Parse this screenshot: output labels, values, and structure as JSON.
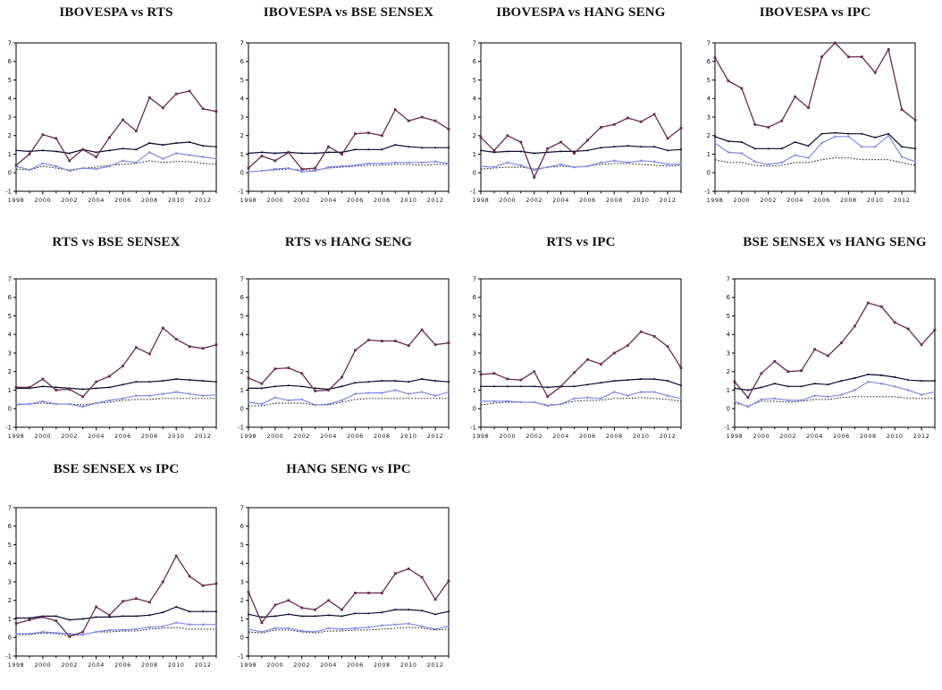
{
  "figure": {
    "description": "Grid of 10 line charts comparing pairs of stock market indices",
    "background": "#ffffff"
  },
  "chart_data": {
    "type": "line",
    "grid": {
      "rows": 3,
      "cols": 4
    },
    "x": [
      1998,
      1999,
      2000,
      2001,
      2002,
      2003,
      2004,
      2005,
      2006,
      2007,
      2008,
      2009,
      2010,
      2011,
      2012,
      2013
    ],
    "x_tick_labels": [
      "1998",
      "2000",
      "2002",
      "2004",
      "2006",
      "2008",
      "2010",
      "2012"
    ],
    "y_ticks": [
      -1,
      0,
      1,
      2,
      3,
      4,
      5,
      6,
      7
    ],
    "ylim": [
      -1,
      7
    ],
    "xlim": [
      1998,
      2013
    ],
    "legend": "none",
    "grid_lines": false,
    "series_meta": [
      {
        "key": "maroon",
        "label": "dark maroon line, square markers",
        "color": "#692B4F",
        "marker": 2.8,
        "dash": null
      },
      {
        "key": "black",
        "label": "dark navy-black line, small markers",
        "color": "#0A0A32",
        "marker": 1.8,
        "dash": null
      },
      {
        "key": "blue",
        "label": "light periwinkle line, square markers",
        "color": "#8487EC",
        "marker": 2.2,
        "dash": null
      },
      {
        "key": "dotted",
        "label": "black dotted line",
        "color": "#000000",
        "marker": 0,
        "dash": "1.6 1.8"
      }
    ],
    "charts": [
      {
        "title": "IBOVESPA vs RTS",
        "row": 0,
        "col": 0,
        "values": {
          "maroon": [
            0.4,
            1.0,
            2.05,
            1.85,
            0.65,
            1.25,
            0.85,
            1.9,
            2.85,
            2.25,
            4.05,
            3.5,
            4.25,
            4.4,
            3.45,
            3.3
          ],
          "black": [
            1.2,
            1.15,
            1.2,
            1.15,
            1.05,
            1.25,
            1.1,
            1.2,
            1.3,
            1.25,
            1.6,
            1.5,
            1.6,
            1.65,
            1.45,
            1.4
          ],
          "blue": [
            0.35,
            0.15,
            0.5,
            0.35,
            0.1,
            0.25,
            0.2,
            0.35,
            0.65,
            0.55,
            1.1,
            0.75,
            1.05,
            0.95,
            0.85,
            0.75
          ],
          "dotted": [
            0.2,
            0.15,
            0.35,
            0.25,
            0.15,
            0.25,
            0.3,
            0.4,
            0.45,
            0.5,
            0.65,
            0.55,
            0.6,
            0.6,
            0.5,
            0.45
          ]
        }
      },
      {
        "title": "IBOVESPA vs BSE SENSEX",
        "row": 0,
        "col": 1,
        "values": {
          "maroon": [
            0.25,
            0.9,
            0.65,
            1.1,
            0.2,
            0.25,
            1.4,
            1.0,
            2.1,
            2.15,
            2.0,
            3.4,
            2.8,
            3.0,
            2.8,
            2.35
          ],
          "black": [
            1.05,
            1.1,
            1.05,
            1.1,
            1.05,
            1.05,
            1.1,
            1.1,
            1.25,
            1.25,
            1.25,
            1.5,
            1.4,
            1.35,
            1.35,
            1.35
          ],
          "blue": [
            0.05,
            0.1,
            0.2,
            0.25,
            0.05,
            0.1,
            0.3,
            0.35,
            0.4,
            0.5,
            0.5,
            0.55,
            0.55,
            0.55,
            0.6,
            0.5
          ],
          "dotted": [
            0.05,
            0.1,
            0.15,
            0.2,
            0.15,
            0.15,
            0.25,
            0.3,
            0.35,
            0.4,
            0.4,
            0.45,
            0.45,
            0.4,
            0.45,
            0.45
          ]
        }
      },
      {
        "title": "IBOVESPA vs HANG SENG",
        "row": 0,
        "col": 2,
        "values": {
          "maroon": [
            1.9,
            1.2,
            2.0,
            1.65,
            -0.25,
            1.3,
            1.65,
            1.05,
            1.75,
            2.45,
            2.6,
            2.95,
            2.75,
            3.15,
            1.85,
            2.4
          ],
          "black": [
            1.2,
            1.1,
            1.15,
            1.15,
            1.05,
            1.1,
            1.15,
            1.15,
            1.2,
            1.35,
            1.4,
            1.45,
            1.4,
            1.4,
            1.2,
            1.25
          ],
          "blue": [
            0.35,
            0.3,
            0.55,
            0.4,
            0.15,
            0.3,
            0.45,
            0.3,
            0.35,
            0.55,
            0.65,
            0.55,
            0.65,
            0.6,
            0.45,
            0.45
          ],
          "dotted": [
            0.2,
            0.25,
            0.3,
            0.3,
            0.2,
            0.3,
            0.35,
            0.3,
            0.35,
            0.45,
            0.5,
            0.5,
            0.45,
            0.4,
            0.35,
            0.4
          ]
        }
      },
      {
        "title": "IBOVESPA vs IPC",
        "row": 0,
        "col": 3,
        "values": {
          "maroon": [
            6.2,
            4.95,
            4.55,
            2.6,
            2.45,
            2.8,
            4.1,
            3.5,
            6.25,
            7.0,
            6.25,
            6.25,
            5.4,
            6.65,
            3.4,
            2.85
          ],
          "black": [
            1.95,
            1.7,
            1.65,
            1.3,
            1.3,
            1.3,
            1.65,
            1.45,
            2.1,
            2.15,
            2.1,
            2.1,
            1.9,
            2.1,
            1.4,
            1.3
          ],
          "blue": [
            1.6,
            1.1,
            1.05,
            0.6,
            0.45,
            0.55,
            0.95,
            0.8,
            1.6,
            1.95,
            1.95,
            1.4,
            1.4,
            2.0,
            0.85,
            0.6
          ],
          "dotted": [
            0.7,
            0.55,
            0.55,
            0.4,
            0.35,
            0.4,
            0.55,
            0.55,
            0.7,
            0.8,
            0.8,
            0.7,
            0.7,
            0.7,
            0.55,
            0.4
          ]
        }
      },
      {
        "title": "RTS vs BSE SENSEX",
        "row": 1,
        "col": 0,
        "values": {
          "maroon": [
            1.15,
            1.15,
            1.6,
            1.0,
            1.05,
            0.65,
            1.45,
            1.75,
            2.3,
            3.3,
            2.95,
            4.35,
            3.75,
            3.35,
            3.25,
            3.45
          ],
          "black": [
            1.1,
            1.1,
            1.2,
            1.15,
            1.1,
            1.05,
            1.1,
            1.15,
            1.3,
            1.45,
            1.45,
            1.5,
            1.6,
            1.55,
            1.5,
            1.45
          ],
          "blue": [
            0.25,
            0.25,
            0.4,
            0.25,
            0.25,
            0.1,
            0.3,
            0.45,
            0.55,
            0.7,
            0.7,
            0.8,
            0.9,
            0.8,
            0.7,
            0.75
          ],
          "dotted": [
            0.2,
            0.25,
            0.3,
            0.25,
            0.25,
            0.2,
            0.3,
            0.35,
            0.45,
            0.5,
            0.5,
            0.55,
            0.55,
            0.55,
            0.55,
            0.55
          ]
        }
      },
      {
        "title": "RTS vs HANG SENG",
        "row": 1,
        "col": 1,
        "values": {
          "maroon": [
            1.65,
            1.35,
            2.15,
            2.2,
            1.9,
            0.95,
            1.0,
            1.7,
            3.15,
            3.7,
            3.65,
            3.65,
            3.4,
            4.25,
            3.45,
            3.55
          ],
          "black": [
            1.1,
            1.1,
            1.2,
            1.25,
            1.2,
            1.1,
            1.05,
            1.2,
            1.4,
            1.45,
            1.5,
            1.5,
            1.45,
            1.6,
            1.5,
            1.45
          ],
          "blue": [
            0.35,
            0.25,
            0.6,
            0.45,
            0.5,
            0.2,
            0.25,
            0.45,
            0.8,
            0.85,
            0.85,
            1.0,
            0.8,
            0.9,
            0.7,
            0.9
          ],
          "dotted": [
            0.15,
            0.15,
            0.3,
            0.3,
            0.3,
            0.2,
            0.2,
            0.35,
            0.5,
            0.55,
            0.55,
            0.55,
            0.55,
            0.55,
            0.55,
            0.55
          ]
        }
      },
      {
        "title": "RTS vs IPC",
        "row": 1,
        "col": 2,
        "values": {
          "maroon": [
            1.85,
            1.9,
            1.6,
            1.55,
            2.0,
            0.65,
            1.2,
            1.95,
            2.65,
            2.4,
            3.0,
            3.4,
            4.15,
            3.9,
            3.35,
            2.2
          ],
          "black": [
            1.2,
            1.2,
            1.2,
            1.2,
            1.2,
            1.15,
            1.2,
            1.2,
            1.3,
            1.4,
            1.5,
            1.55,
            1.6,
            1.6,
            1.5,
            1.25
          ],
          "blue": [
            0.4,
            0.4,
            0.4,
            0.35,
            0.35,
            0.15,
            0.25,
            0.55,
            0.6,
            0.55,
            0.9,
            0.7,
            0.9,
            0.9,
            0.7,
            0.55
          ],
          "dotted": [
            0.2,
            0.3,
            0.35,
            0.35,
            0.35,
            0.2,
            0.25,
            0.4,
            0.45,
            0.45,
            0.55,
            0.55,
            0.6,
            0.55,
            0.5,
            0.4
          ]
        }
      },
      {
        "title": "BSE SENSEX vs HANG SENG",
        "row": 1,
        "col": 3,
        "x_shift": 22,
        "values": {
          "maroon": [
            1.45,
            0.6,
            1.9,
            2.55,
            2.0,
            2.05,
            3.2,
            2.85,
            3.55,
            4.45,
            5.7,
            5.5,
            4.65,
            4.3,
            3.45,
            4.25
          ],
          "black": [
            1.1,
            1.0,
            1.15,
            1.35,
            1.2,
            1.2,
            1.35,
            1.3,
            1.5,
            1.65,
            1.85,
            1.8,
            1.7,
            1.55,
            1.5,
            1.5
          ],
          "blue": [
            0.4,
            0.1,
            0.5,
            0.55,
            0.45,
            0.45,
            0.7,
            0.65,
            0.75,
            1.0,
            1.45,
            1.35,
            1.2,
            1.0,
            0.75,
            0.9
          ],
          "dotted": [
            0.3,
            0.15,
            0.4,
            0.4,
            0.35,
            0.4,
            0.5,
            0.5,
            0.6,
            0.65,
            0.65,
            0.65,
            0.65,
            0.55,
            0.55,
            0.55
          ]
        }
      },
      {
        "title": "BSE SENSEX vs IPC",
        "row": 2,
        "col": 0,
        "values": {
          "maroon": [
            0.75,
            0.95,
            1.1,
            0.9,
            0.05,
            0.3,
            1.65,
            1.2,
            1.95,
            2.1,
            1.9,
            3.0,
            4.4,
            3.3,
            2.8,
            2.9
          ],
          "black": [
            1.05,
            1.05,
            1.15,
            1.15,
            0.95,
            1.0,
            1.1,
            1.1,
            1.15,
            1.15,
            1.2,
            1.35,
            1.65,
            1.4,
            1.4,
            1.4
          ],
          "blue": [
            0.2,
            0.2,
            0.3,
            0.25,
            0.2,
            0.15,
            0.3,
            0.4,
            0.4,
            0.45,
            0.55,
            0.6,
            0.8,
            0.7,
            0.7,
            0.7
          ],
          "dotted": [
            0.15,
            0.15,
            0.25,
            0.2,
            0.1,
            0.15,
            0.3,
            0.3,
            0.35,
            0.35,
            0.45,
            0.5,
            0.55,
            0.45,
            0.45,
            0.45
          ]
        }
      },
      {
        "title": "HANG SENG vs IPC",
        "row": 2,
        "col": 1,
        "values": {
          "maroon": [
            2.45,
            0.8,
            1.75,
            2.0,
            1.6,
            1.5,
            2.0,
            1.5,
            2.4,
            2.4,
            2.4,
            3.45,
            3.7,
            3.25,
            2.05,
            3.05
          ],
          "black": [
            1.25,
            1.1,
            1.15,
            1.25,
            1.15,
            1.15,
            1.2,
            1.15,
            1.3,
            1.3,
            1.35,
            1.5,
            1.5,
            1.45,
            1.25,
            1.4
          ],
          "blue": [
            0.45,
            0.3,
            0.5,
            0.5,
            0.35,
            0.3,
            0.5,
            0.45,
            0.5,
            0.55,
            0.65,
            0.7,
            0.75,
            0.6,
            0.45,
            0.6
          ],
          "dotted": [
            0.3,
            0.25,
            0.4,
            0.4,
            0.3,
            0.25,
            0.35,
            0.35,
            0.4,
            0.4,
            0.45,
            0.5,
            0.55,
            0.5,
            0.4,
            0.45
          ]
        }
      }
    ]
  }
}
